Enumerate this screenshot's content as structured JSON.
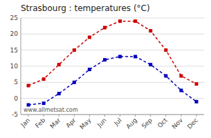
{
  "chart_data": {
    "type": "line",
    "title": "Strasbourg : temperatures (°C)",
    "categories": [
      "Jan",
      "Feb",
      "Mar",
      "Apr",
      "May",
      "Jun",
      "Jul",
      "Aug",
      "Sep",
      "Oct",
      "Nov",
      "Dec"
    ],
    "series": [
      {
        "color": "#cc0000",
        "values": [
          4,
          6,
          10.5,
          15,
          19,
          22,
          24,
          24,
          21,
          15,
          7,
          4.5
        ]
      },
      {
        "color": "#0000bb",
        "values": [
          -2,
          -1.5,
          1.5,
          5,
          9,
          12,
          13,
          13,
          10.5,
          7,
          2.5,
          -1
        ]
      }
    ],
    "ylim": [
      -5,
      25
    ],
    "yticks": [
      -5,
      0,
      5,
      10,
      15,
      20,
      25
    ],
    "grid": true,
    "marker": "square",
    "line_style": "dashed",
    "annotations": [
      "www.allmetsat.com"
    ]
  }
}
